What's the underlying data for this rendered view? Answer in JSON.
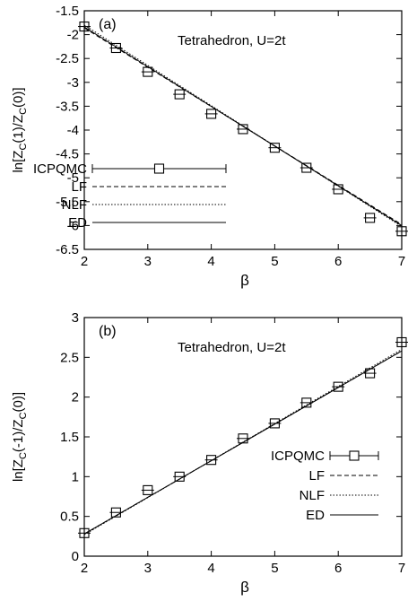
{
  "chart_data": [
    {
      "type": "line",
      "panel_label": "(a)",
      "annotation": "Tetrahedron, U=2t",
      "xlabel": "β",
      "ylabel": "ln[Z_C(1)/Z_C(0)]",
      "ylabel_parts": {
        "pre": "ln[Z",
        "s1": "C",
        "mid": "(1)/Z",
        "s2": "C",
        "post": "(0)]"
      },
      "xlim": [
        2,
        7
      ],
      "ylim": [
        -6.5,
        -1.5
      ],
      "xticks": [
        "2",
        "3",
        "4",
        "5",
        "6",
        "7"
      ],
      "yticks": [
        "-1.5",
        "-2",
        "-2.5",
        "-3",
        "-3.5",
        "-4",
        "-4.5",
        "-5",
        "-5.5",
        "-6",
        "-6.5"
      ],
      "grid": false,
      "legend_position": "bottom-left",
      "series": [
        {
          "name": "ICPQMC",
          "style": "errorbar-square",
          "x": [
            2,
            2.5,
            3,
            3.5,
            4,
            4.5,
            5,
            5.5,
            6,
            6.5,
            7
          ],
          "y": [
            -1.83,
            -2.28,
            -2.78,
            -3.25,
            -3.66,
            -3.98,
            -4.37,
            -4.79,
            -5.24,
            -5.84,
            -6.12
          ]
        },
        {
          "name": "LF",
          "style": "dashed",
          "x": [
            2,
            7
          ],
          "y": [
            -1.86,
            -5.98
          ]
        },
        {
          "name": "NLF",
          "style": "dotted",
          "x": [
            2,
            7
          ],
          "y": [
            -1.8,
            -6.02
          ]
        },
        {
          "name": "ED",
          "style": "solid",
          "x": [
            2,
            7
          ],
          "y": [
            -1.84,
            -6.0
          ]
        }
      ]
    },
    {
      "type": "line",
      "panel_label": "(b)",
      "annotation": "Tetrahedron, U=2t",
      "xlabel": "β",
      "ylabel": "ln[Z_C(-1)/Z_C(0)]",
      "ylabel_parts": {
        "pre": "ln[Z",
        "s1": "C",
        "mid": "(-1)/Z",
        "s2": "C",
        "post": "(0)]"
      },
      "xlim": [
        2,
        7
      ],
      "ylim": [
        0,
        3
      ],
      "xticks": [
        "2",
        "3",
        "4",
        "5",
        "6",
        "7"
      ],
      "yticks": [
        "0",
        "0.5",
        "1",
        "1.5",
        "2",
        "2.5",
        "3"
      ],
      "grid": false,
      "legend_position": "bottom-right",
      "series": [
        {
          "name": "ICPQMC",
          "style": "errorbar-square",
          "x": [
            2,
            2.5,
            3,
            3.5,
            4,
            4.5,
            5,
            5.5,
            6,
            6.5,
            7
          ],
          "y": [
            0.29,
            0.55,
            0.83,
            1.0,
            1.21,
            1.48,
            1.67,
            1.93,
            2.13,
            2.3,
            2.69
          ]
        },
        {
          "name": "LF",
          "style": "dashed",
          "x": [
            2,
            7
          ],
          "y": [
            0.28,
            2.58
          ]
        },
        {
          "name": "NLF",
          "style": "dotted",
          "x": [
            2,
            7
          ],
          "y": [
            0.27,
            2.6
          ]
        },
        {
          "name": "ED",
          "style": "solid",
          "x": [
            2,
            7
          ],
          "y": [
            0.28,
            2.58
          ]
        }
      ]
    }
  ]
}
